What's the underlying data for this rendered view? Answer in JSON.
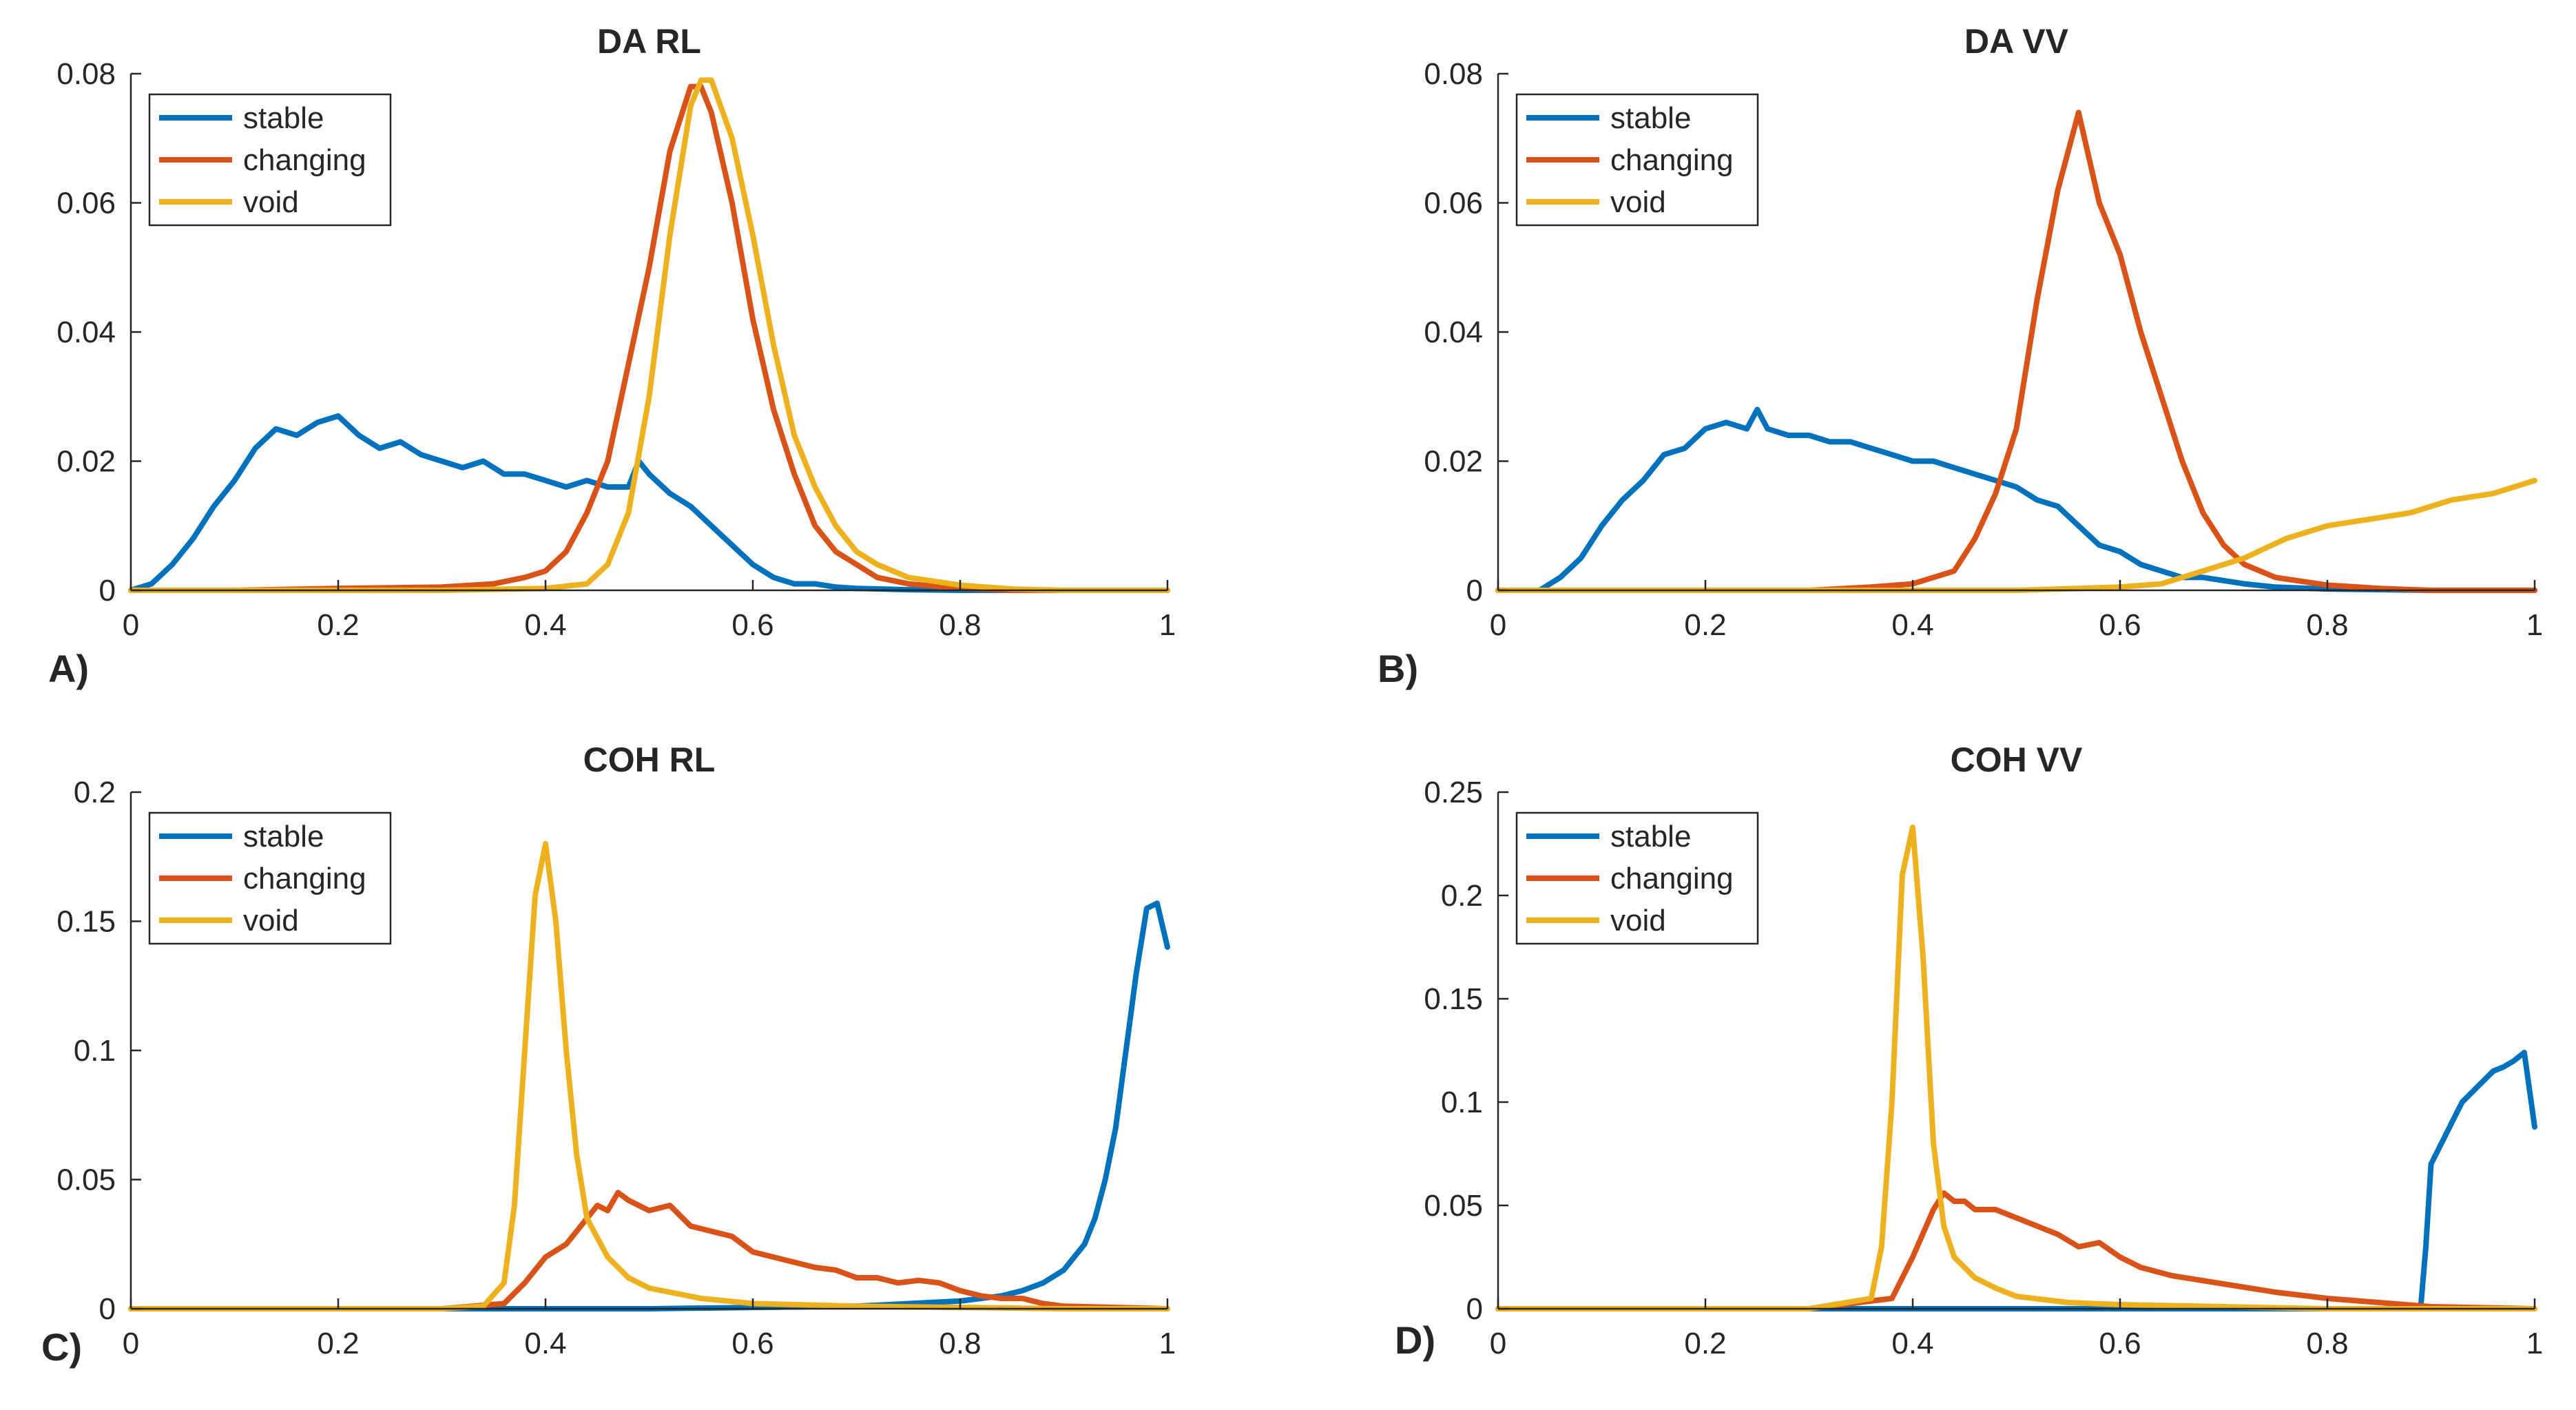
{
  "colors": {
    "stable": "#0072BD",
    "changing": "#D95319",
    "void": "#EDB120"
  },
  "chart_data": [
    {
      "type": "line",
      "panel_label": "A)",
      "title": "DA RL",
      "xlabel": "",
      "ylabel": "",
      "xlim": [
        0,
        1
      ],
      "ylim": [
        0,
        0.08
      ],
      "xticks": [
        0,
        0.2,
        0.4,
        0.6,
        0.8,
        1
      ],
      "xtick_labels": [
        "0",
        "0.2",
        "0.4",
        "0.6",
        "0.8",
        "1"
      ],
      "yticks": [
        0,
        0.02,
        0.04,
        0.06,
        0.08
      ],
      "ytick_labels": [
        "0",
        "0.02",
        "0.04",
        "0.06",
        "0.08"
      ],
      "legend": {
        "position": "top-left",
        "entries": [
          "stable",
          "changing",
          "void"
        ]
      },
      "series": [
        {
          "name": "stable",
          "color": "#0072BD",
          "x": [
            0,
            0.02,
            0.04,
            0.06,
            0.08,
            0.1,
            0.12,
            0.14,
            0.16,
            0.18,
            0.2,
            0.22,
            0.24,
            0.26,
            0.28,
            0.3,
            0.32,
            0.34,
            0.36,
            0.38,
            0.4,
            0.42,
            0.44,
            0.46,
            0.48,
            0.49,
            0.5,
            0.52,
            0.54,
            0.56,
            0.58,
            0.6,
            0.62,
            0.64,
            0.66,
            0.68,
            0.7,
            0.75,
            0.8,
            0.9,
            1
          ],
          "y": [
            0,
            0.001,
            0.004,
            0.008,
            0.013,
            0.017,
            0.022,
            0.025,
            0.024,
            0.026,
            0.027,
            0.024,
            0.022,
            0.023,
            0.021,
            0.02,
            0.019,
            0.02,
            0.018,
            0.018,
            0.017,
            0.016,
            0.017,
            0.016,
            0.016,
            0.02,
            0.018,
            0.015,
            0.013,
            0.01,
            0.007,
            0.004,
            0.002,
            0.001,
            0.001,
            0.0005,
            0.0003,
            0.0001,
            0,
            0,
            0
          ]
        },
        {
          "name": "changing",
          "color": "#D95319",
          "x": [
            0,
            0.1,
            0.2,
            0.3,
            0.35,
            0.38,
            0.4,
            0.42,
            0.44,
            0.46,
            0.48,
            0.5,
            0.52,
            0.54,
            0.55,
            0.56,
            0.58,
            0.6,
            0.62,
            0.64,
            0.66,
            0.68,
            0.7,
            0.72,
            0.75,
            0.8,
            0.85,
            0.9,
            1
          ],
          "y": [
            0,
            0,
            0.0003,
            0.0005,
            0.001,
            0.002,
            0.003,
            0.006,
            0.012,
            0.02,
            0.035,
            0.05,
            0.068,
            0.078,
            0.078,
            0.074,
            0.06,
            0.042,
            0.028,
            0.018,
            0.01,
            0.006,
            0.004,
            0.002,
            0.001,
            0.0003,
            0,
            0,
            0
          ]
        },
        {
          "name": "void",
          "color": "#EDB120",
          "x": [
            0,
            0.3,
            0.4,
            0.44,
            0.46,
            0.48,
            0.5,
            0.52,
            0.54,
            0.55,
            0.56,
            0.58,
            0.6,
            0.62,
            0.64,
            0.66,
            0.68,
            0.7,
            0.72,
            0.75,
            0.8,
            0.85,
            0.9,
            1
          ],
          "y": [
            0,
            0,
            0.0003,
            0.001,
            0.004,
            0.012,
            0.03,
            0.055,
            0.075,
            0.079,
            0.079,
            0.07,
            0.055,
            0.038,
            0.024,
            0.016,
            0.01,
            0.006,
            0.004,
            0.002,
            0.0008,
            0.0002,
            0,
            0
          ]
        }
      ]
    },
    {
      "type": "line",
      "panel_label": "B)",
      "title": "DA VV",
      "xlabel": "",
      "ylabel": "",
      "xlim": [
        0,
        1
      ],
      "ylim": [
        0,
        0.08
      ],
      "xticks": [
        0,
        0.2,
        0.4,
        0.6,
        0.8,
        1
      ],
      "xtick_labels": [
        "0",
        "0.2",
        "0.4",
        "0.6",
        "0.8",
        "1"
      ],
      "yticks": [
        0,
        0.02,
        0.04,
        0.06,
        0.08
      ],
      "ytick_labels": [
        "0",
        "0.02",
        "0.04",
        "0.06",
        "0.08"
      ],
      "legend": {
        "position": "top-left",
        "entries": [
          "stable",
          "changing",
          "void"
        ]
      },
      "series": [
        {
          "name": "stable",
          "color": "#0072BD",
          "x": [
            0,
            0.04,
            0.06,
            0.08,
            0.1,
            0.12,
            0.14,
            0.16,
            0.18,
            0.2,
            0.22,
            0.24,
            0.25,
            0.26,
            0.28,
            0.3,
            0.32,
            0.34,
            0.36,
            0.38,
            0.4,
            0.42,
            0.44,
            0.46,
            0.48,
            0.5,
            0.52,
            0.54,
            0.56,
            0.58,
            0.6,
            0.62,
            0.64,
            0.66,
            0.68,
            0.7,
            0.72,
            0.75,
            0.8,
            0.9,
            1
          ],
          "y": [
            0,
            0,
            0.002,
            0.005,
            0.01,
            0.014,
            0.017,
            0.021,
            0.022,
            0.025,
            0.026,
            0.025,
            0.028,
            0.025,
            0.024,
            0.024,
            0.023,
            0.023,
            0.022,
            0.021,
            0.02,
            0.02,
            0.019,
            0.018,
            0.017,
            0.016,
            0.014,
            0.013,
            0.01,
            0.007,
            0.006,
            0.004,
            0.003,
            0.002,
            0.002,
            0.0015,
            0.001,
            0.0005,
            0.0002,
            0,
            0
          ]
        },
        {
          "name": "changing",
          "color": "#D95319",
          "x": [
            0,
            0.3,
            0.36,
            0.4,
            0.42,
            0.44,
            0.46,
            0.48,
            0.5,
            0.52,
            0.54,
            0.56,
            0.58,
            0.6,
            0.62,
            0.64,
            0.66,
            0.68,
            0.7,
            0.72,
            0.75,
            0.8,
            0.85,
            0.9,
            1
          ],
          "y": [
            0,
            0,
            0.0005,
            0.001,
            0.002,
            0.003,
            0.008,
            0.015,
            0.025,
            0.045,
            0.062,
            0.074,
            0.06,
            0.052,
            0.04,
            0.03,
            0.02,
            0.012,
            0.007,
            0.004,
            0.002,
            0.0008,
            0.0003,
            0,
            0
          ]
        },
        {
          "name": "void",
          "color": "#EDB120",
          "x": [
            0,
            0.5,
            0.6,
            0.64,
            0.68,
            0.72,
            0.76,
            0.8,
            0.84,
            0.88,
            0.92,
            0.96,
            0.98,
            1
          ],
          "y": [
            0,
            0,
            0.0005,
            0.001,
            0.003,
            0.005,
            0.008,
            0.01,
            0.011,
            0.012,
            0.014,
            0.015,
            0.016,
            0.017
          ]
        }
      ]
    },
    {
      "type": "line",
      "panel_label": "C)",
      "title": "COH RL",
      "xlabel": "",
      "ylabel": "",
      "xlim": [
        0,
        1
      ],
      "ylim": [
        0,
        0.2
      ],
      "xticks": [
        0,
        0.2,
        0.4,
        0.6,
        0.8,
        1
      ],
      "xtick_labels": [
        "0",
        "0.2",
        "0.4",
        "0.6",
        "0.8",
        "1"
      ],
      "yticks": [
        0,
        0.05,
        0.1,
        0.15,
        0.2
      ],
      "ytick_labels": [
        "0",
        "0.05",
        "0.1",
        "0.15",
        "0.2"
      ],
      "legend": {
        "position": "top-left",
        "entries": [
          "stable",
          "changing",
          "void"
        ]
      },
      "series": [
        {
          "name": "stable",
          "color": "#0072BD",
          "x": [
            0,
            0.5,
            0.6,
            0.7,
            0.8,
            0.84,
            0.86,
            0.88,
            0.9,
            0.91,
            0.92,
            0.93,
            0.94,
            0.95,
            0.96,
            0.97,
            0.98,
            0.99,
            1
          ],
          "y": [
            0,
            0,
            0.0005,
            0.001,
            0.003,
            0.005,
            0.007,
            0.01,
            0.015,
            0.02,
            0.025,
            0.035,
            0.05,
            0.07,
            0.1,
            0.13,
            0.155,
            0.157,
            0.14
          ]
        },
        {
          "name": "changing",
          "color": "#D95319",
          "x": [
            0,
            0.3,
            0.36,
            0.38,
            0.4,
            0.42,
            0.44,
            0.45,
            0.46,
            0.47,
            0.48,
            0.5,
            0.52,
            0.54,
            0.56,
            0.58,
            0.6,
            0.62,
            0.64,
            0.66,
            0.68,
            0.7,
            0.72,
            0.74,
            0.76,
            0.78,
            0.8,
            0.82,
            0.84,
            0.86,
            0.88,
            0.9,
            0.95,
            1
          ],
          "y": [
            0,
            0,
            0.002,
            0.01,
            0.02,
            0.025,
            0.035,
            0.04,
            0.038,
            0.045,
            0.042,
            0.038,
            0.04,
            0.032,
            0.03,
            0.028,
            0.022,
            0.02,
            0.018,
            0.016,
            0.015,
            0.012,
            0.012,
            0.01,
            0.011,
            0.01,
            0.007,
            0.005,
            0.004,
            0.004,
            0.002,
            0.001,
            0.0005,
            0
          ]
        },
        {
          "name": "void",
          "color": "#EDB120",
          "x": [
            0,
            0.3,
            0.34,
            0.36,
            0.37,
            0.38,
            0.39,
            0.4,
            0.41,
            0.42,
            0.43,
            0.44,
            0.46,
            0.48,
            0.5,
            0.55,
            0.6,
            0.7,
            0.8,
            0.9,
            1
          ],
          "y": [
            0,
            0,
            0.001,
            0.01,
            0.04,
            0.1,
            0.16,
            0.18,
            0.15,
            0.1,
            0.06,
            0.035,
            0.02,
            0.012,
            0.008,
            0.004,
            0.002,
            0.001,
            0.0005,
            0,
            0
          ]
        }
      ]
    },
    {
      "type": "line",
      "panel_label": "D)",
      "title": "COH VV",
      "xlabel": "",
      "ylabel": "",
      "xlim": [
        0,
        1
      ],
      "ylim": [
        0,
        0.25
      ],
      "xticks": [
        0,
        0.2,
        0.4,
        0.6,
        0.8,
        1
      ],
      "xtick_labels": [
        "0",
        "0.2",
        "0.4",
        "0.6",
        "0.8",
        "1"
      ],
      "yticks": [
        0,
        0.05,
        0.1,
        0.15,
        0.2,
        0.25
      ],
      "ytick_labels": [
        "0",
        "0.05",
        "0.1",
        "0.15",
        "0.2",
        "0.25"
      ],
      "legend": {
        "position": "top-left",
        "entries": [
          "stable",
          "changing",
          "void"
        ]
      },
      "series": [
        {
          "name": "stable",
          "color": "#0072BD",
          "x": [
            0,
            0.89,
            0.895,
            0.9,
            0.91,
            0.92,
            0.93,
            0.94,
            0.95,
            0.96,
            0.97,
            0.98,
            0.99,
            1
          ],
          "y": [
            0,
            0,
            0.03,
            0.07,
            0.08,
            0.09,
            0.1,
            0.105,
            0.11,
            0.115,
            0.117,
            0.12,
            0.124,
            0.088
          ]
        },
        {
          "name": "changing",
          "color": "#D95319",
          "x": [
            0,
            0.3,
            0.38,
            0.4,
            0.42,
            0.43,
            0.44,
            0.45,
            0.46,
            0.48,
            0.5,
            0.52,
            0.54,
            0.56,
            0.58,
            0.6,
            0.62,
            0.65,
            0.7,
            0.75,
            0.8,
            0.85,
            0.9,
            1
          ],
          "y": [
            0,
            0,
            0.005,
            0.025,
            0.048,
            0.056,
            0.052,
            0.052,
            0.048,
            0.048,
            0.044,
            0.04,
            0.036,
            0.03,
            0.032,
            0.025,
            0.02,
            0.016,
            0.012,
            0.008,
            0.005,
            0.003,
            0.001,
            0
          ]
        },
        {
          "name": "void",
          "color": "#EDB120",
          "x": [
            0,
            0.3,
            0.36,
            0.37,
            0.38,
            0.39,
            0.4,
            0.41,
            0.42,
            0.43,
            0.44,
            0.46,
            0.48,
            0.5,
            0.55,
            0.6,
            0.7,
            0.8,
            1
          ],
          "y": [
            0,
            0,
            0.005,
            0.03,
            0.1,
            0.21,
            0.233,
            0.17,
            0.08,
            0.04,
            0.025,
            0.015,
            0.01,
            0.006,
            0.003,
            0.002,
            0.001,
            0,
            0
          ]
        }
      ]
    }
  ]
}
